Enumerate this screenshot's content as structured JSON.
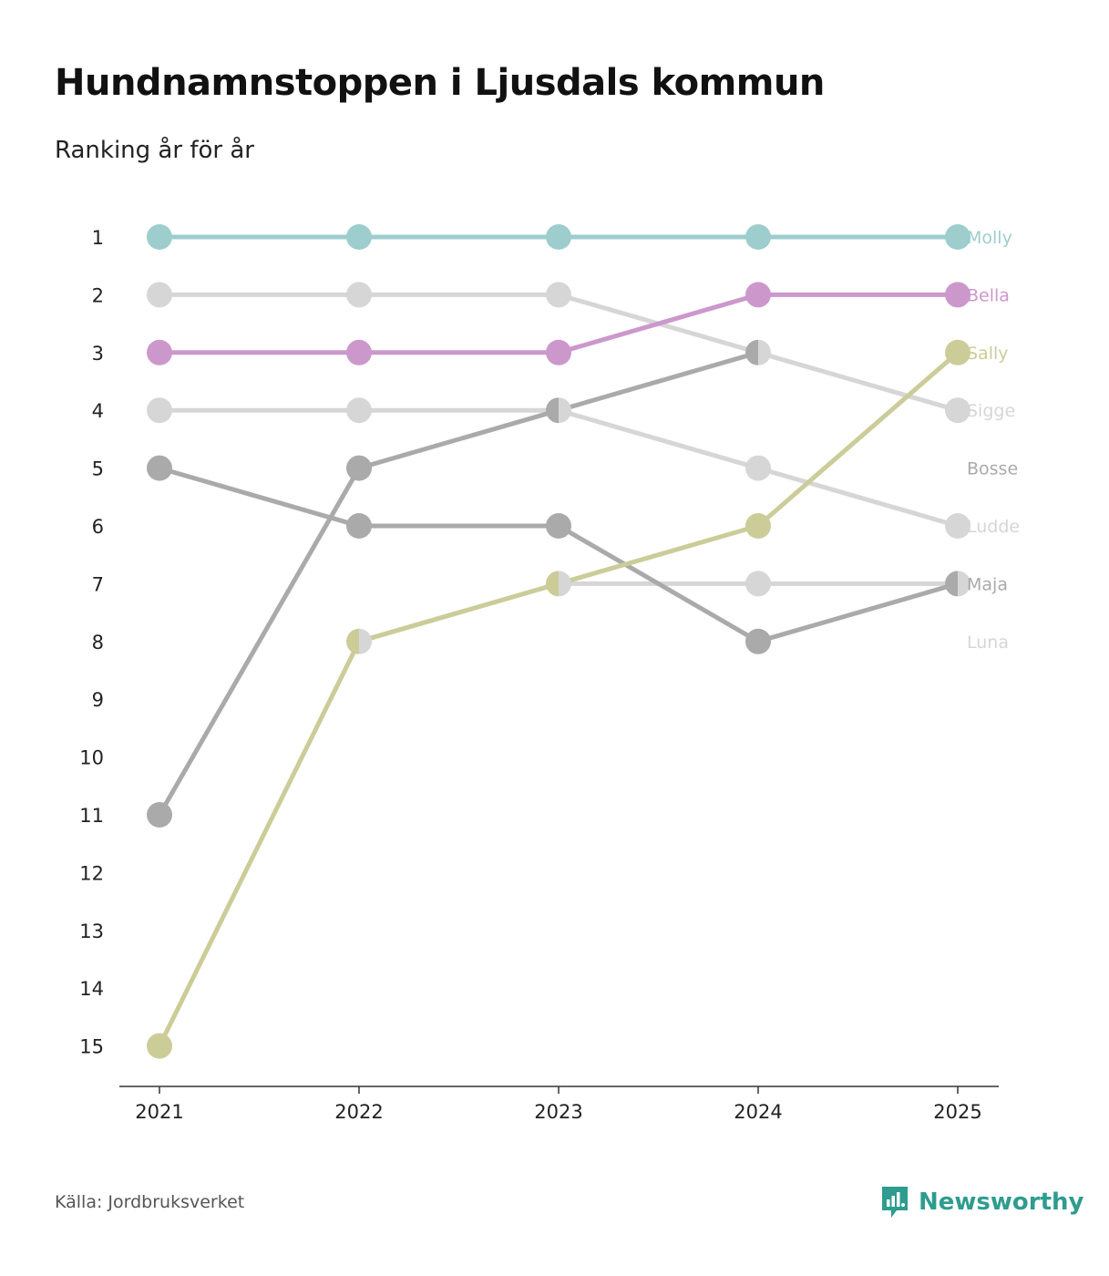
{
  "header": {
    "title": "Hundnamnstoppen i Ljusdals kommun",
    "subtitle": "Ranking år för år"
  },
  "footer": {
    "source": "Källa: Jordbruksverket",
    "brand": "Newsworthy"
  },
  "colors": {
    "molly": "#9dcdcd",
    "bella": "#cc98cc",
    "sally": "#cccc99",
    "dark_gray": "#aaaaaa",
    "light_gray": "#d6d6d6",
    "axis": "#333333",
    "brand": "#2e9c8f"
  },
  "chart_data": {
    "type": "line",
    "subtype": "bump",
    "title": "Hundnamnstoppen i Ljusdals kommun",
    "subtitle": "Ranking år för år",
    "xlabel": "",
    "ylabel": "",
    "x": [
      "2021",
      "2022",
      "2023",
      "2024",
      "2025"
    ],
    "y_ticks": [
      1,
      2,
      3,
      4,
      5,
      6,
      7,
      8,
      9,
      10,
      11,
      12,
      13,
      14,
      15
    ],
    "ylim": [
      1,
      15
    ],
    "y_inverted": true,
    "series": [
      {
        "name": "Ludde",
        "color": "#d6d6d6",
        "values": [
          4,
          4,
          4,
          5,
          6
        ]
      },
      {
        "name": "Luna",
        "color": "#d6d6d6",
        "values": [
          null,
          8,
          7,
          7,
          7
        ]
      },
      {
        "name": "Sigge",
        "color": "#d6d6d6",
        "values": [
          2,
          2,
          2,
          3,
          4
        ]
      },
      {
        "name": "Bosse",
        "color": "#aaaaaa",
        "values": [
          11,
          5,
          4,
          3,
          null
        ]
      },
      {
        "name": "Maja",
        "color": "#aaaaaa",
        "values": [
          5,
          6,
          6,
          8,
          7
        ]
      },
      {
        "name": "Sally",
        "color": "#cccc99",
        "values": [
          15,
          8,
          7,
          6,
          3
        ]
      },
      {
        "name": "Bella",
        "color": "#cc98cc",
        "values": [
          3,
          3,
          3,
          2,
          2
        ]
      },
      {
        "name": "Molly",
        "color": "#9dcdcd",
        "values": [
          1,
          1,
          1,
          1,
          1
        ]
      }
    ],
    "labels": [
      {
        "name": "Molly",
        "color": "#9dcdcd",
        "rank": 1
      },
      {
        "name": "Bella",
        "color": "#cc98cc",
        "rank": 2
      },
      {
        "name": "Sally",
        "color": "#cccc99",
        "rank": 3
      },
      {
        "name": "Sigge",
        "color": "#d6d6d6",
        "rank": 4
      },
      {
        "name": "Bosse",
        "color": "#aaaaaa",
        "rank": 5
      },
      {
        "name": "Ludde",
        "color": "#d6d6d6",
        "rank": 6
      },
      {
        "name": "Maja",
        "color": "#aaaaaa",
        "rank": 7
      },
      {
        "name": "Luna",
        "color": "#d6d6d6",
        "rank": 8
      }
    ],
    "grid": false,
    "legend": "direct labels on right"
  }
}
